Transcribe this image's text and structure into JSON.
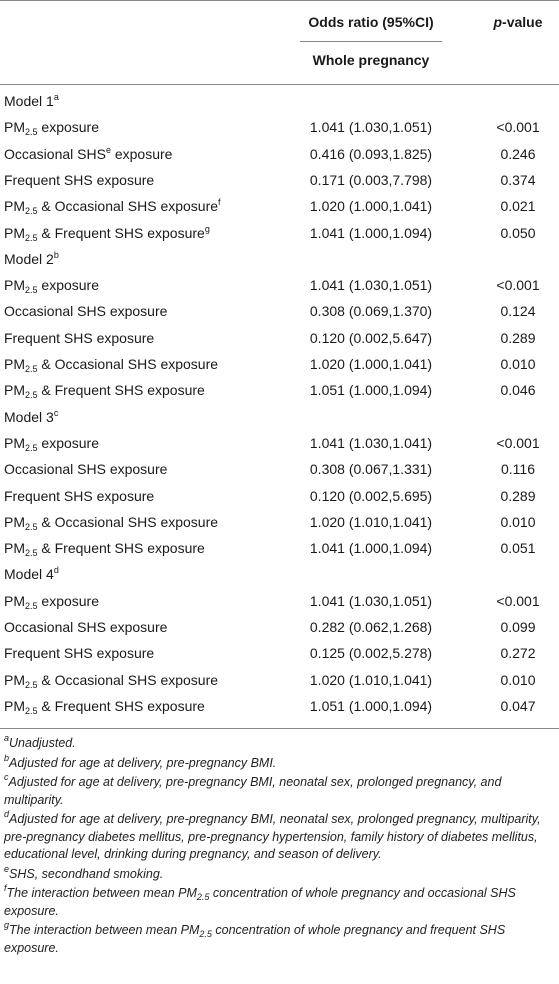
{
  "header": {
    "or_col": "Odds ratio (95%CI)",
    "p_col_italic": "p",
    "p_col_rest": "-value",
    "sub_col": "Whole pregnancy"
  },
  "rows": [
    {
      "type": "model",
      "pre": "Model 1",
      "sup": "a"
    },
    {
      "type": "data",
      "pre": "PM",
      "sub": "2.5",
      "post": " exposure",
      "sup": "",
      "post2": "",
      "or": "1.041 (1.030,1.051)",
      "p": "<0.001"
    },
    {
      "type": "data",
      "pre": "Occasional SHS",
      "sub": "",
      "post": "",
      "sup": "e",
      "post2": " exposure",
      "or": "0.416 (0.093,1.825)",
      "p": "0.246"
    },
    {
      "type": "data",
      "pre": "Frequent SHS exposure",
      "sub": "",
      "post": "",
      "sup": "",
      "post2": "",
      "or": "0.171 (0.003,7.798)",
      "p": "0.374"
    },
    {
      "type": "data",
      "pre": "PM",
      "sub": "2.5",
      "post": " & Occasional SHS exposure",
      "sup": "f",
      "post2": "",
      "or": "1.020 (1.000,1.041)",
      "p": "0.021"
    },
    {
      "type": "data",
      "pre": "PM",
      "sub": "2.5",
      "post": " & Frequent SHS exposure",
      "sup": "g",
      "post2": "",
      "or": "1.041 (1.000,1.094)",
      "p": "0.050"
    },
    {
      "type": "model",
      "pre": "Model 2",
      "sup": "b"
    },
    {
      "type": "data",
      "pre": "PM",
      "sub": "2.5",
      "post": " exposure",
      "sup": "",
      "post2": "",
      "or": "1.041 (1.030,1.051)",
      "p": "<0.001"
    },
    {
      "type": "data",
      "pre": "Occasional SHS exposure",
      "sub": "",
      "post": "",
      "sup": "",
      "post2": "",
      "or": "0.308 (0.069,1.370)",
      "p": "0.124"
    },
    {
      "type": "data",
      "pre": "Frequent SHS exposure",
      "sub": "",
      "post": "",
      "sup": "",
      "post2": "",
      "or": "0.120 (0.002,5.647)",
      "p": "0.289"
    },
    {
      "type": "data",
      "pre": "PM",
      "sub": "2.5",
      "post": " & Occasional SHS exposure",
      "sup": "",
      "post2": "",
      "or": "1.020 (1.000,1.041)",
      "p": "0.010"
    },
    {
      "type": "data",
      "pre": "PM",
      "sub": "2.5",
      "post": " & Frequent SHS exposure",
      "sup": "",
      "post2": "",
      "or": "1.051 (1.000,1.094)",
      "p": "0.046"
    },
    {
      "type": "model",
      "pre": "Model 3",
      "sup": "c"
    },
    {
      "type": "data",
      "pre": "PM",
      "sub": "2.5",
      "post": " exposure",
      "sup": "",
      "post2": "",
      "or": "1.041 (1.030,1.041)",
      "p": "<0.001"
    },
    {
      "type": "data",
      "pre": "Occasional SHS exposure",
      "sub": "",
      "post": "",
      "sup": "",
      "post2": "",
      "or": "0.308 (0.067,1.331)",
      "p": "0.116"
    },
    {
      "type": "data",
      "pre": "Frequent SHS exposure",
      "sub": "",
      "post": "",
      "sup": "",
      "post2": "",
      "or": "0.120 (0.002,5.695)",
      "p": "0.289"
    },
    {
      "type": "data",
      "pre": "PM",
      "sub": "2.5",
      "post": " & Occasional SHS exposure",
      "sup": "",
      "post2": "",
      "or": "1.020 (1.010,1.041)",
      "p": "0.010"
    },
    {
      "type": "data",
      "pre": "PM",
      "sub": "2.5",
      "post": " & Frequent SHS exposure",
      "sup": "",
      "post2": "",
      "or": "1.041 (1.000,1.094)",
      "p": "0.051"
    },
    {
      "type": "model",
      "pre": "Model 4",
      "sup": "d"
    },
    {
      "type": "data",
      "pre": "PM",
      "sub": "2.5",
      "post": " exposure",
      "sup": "",
      "post2": "",
      "or": "1.041 (1.030,1.051)",
      "p": "<0.001"
    },
    {
      "type": "data",
      "pre": "Occasional SHS exposure",
      "sub": "",
      "post": "",
      "sup": "",
      "post2": "",
      "or": "0.282 (0.062,1.268)",
      "p": "0.099"
    },
    {
      "type": "data",
      "pre": "Frequent SHS exposure",
      "sub": "",
      "post": "",
      "sup": "",
      "post2": "",
      "or": "0.125 (0.002,5.278)",
      "p": "0.272"
    },
    {
      "type": "data",
      "pre": "PM",
      "sub": "2.5",
      "post": " & Occasional SHS exposure",
      "sup": "",
      "post2": "",
      "or": "1.020 (1.010,1.041)",
      "p": "0.010"
    },
    {
      "type": "data",
      "pre": "PM",
      "sub": "2.5",
      "post": " & Frequent SHS exposure",
      "sup": "",
      "post2": "",
      "or": "1.051 (1.000,1.094)",
      "p": "0.047"
    }
  ],
  "notes": [
    {
      "mark": "a",
      "pre": "Unadjusted.",
      "sub": "",
      "post": ""
    },
    {
      "mark": "b",
      "pre": "Adjusted for age at delivery, pre-pregnancy BMI.",
      "sub": "",
      "post": ""
    },
    {
      "mark": "c",
      "pre": "Adjusted for age at delivery, pre-pregnancy BMI, neonatal sex, prolonged pregnancy, and multiparity.",
      "sub": "",
      "post": ""
    },
    {
      "mark": "d",
      "pre": "Adjusted for age at delivery, pre-pregnancy BMI, neonatal sex, prolonged pregnancy, multiparity, pre-pregnancy diabetes mellitus, pre-pregnancy hypertension, family history of diabetes mellitus, educational level, drinking during pregnancy, and season of delivery.",
      "sub": "",
      "post": ""
    },
    {
      "mark": "e",
      "pre": "SHS, secondhand smoking.",
      "sub": "",
      "post": ""
    },
    {
      "mark": "f",
      "pre": "The interaction between mean PM",
      "sub": "2.5",
      "post": " concentration of whole pregnancy and occasional SHS exposure."
    },
    {
      "mark": "g",
      "pre": "The interaction between mean PM",
      "sub": "2.5",
      "post": " concentration of whole pregnancy and frequent SHS exposure."
    }
  ]
}
